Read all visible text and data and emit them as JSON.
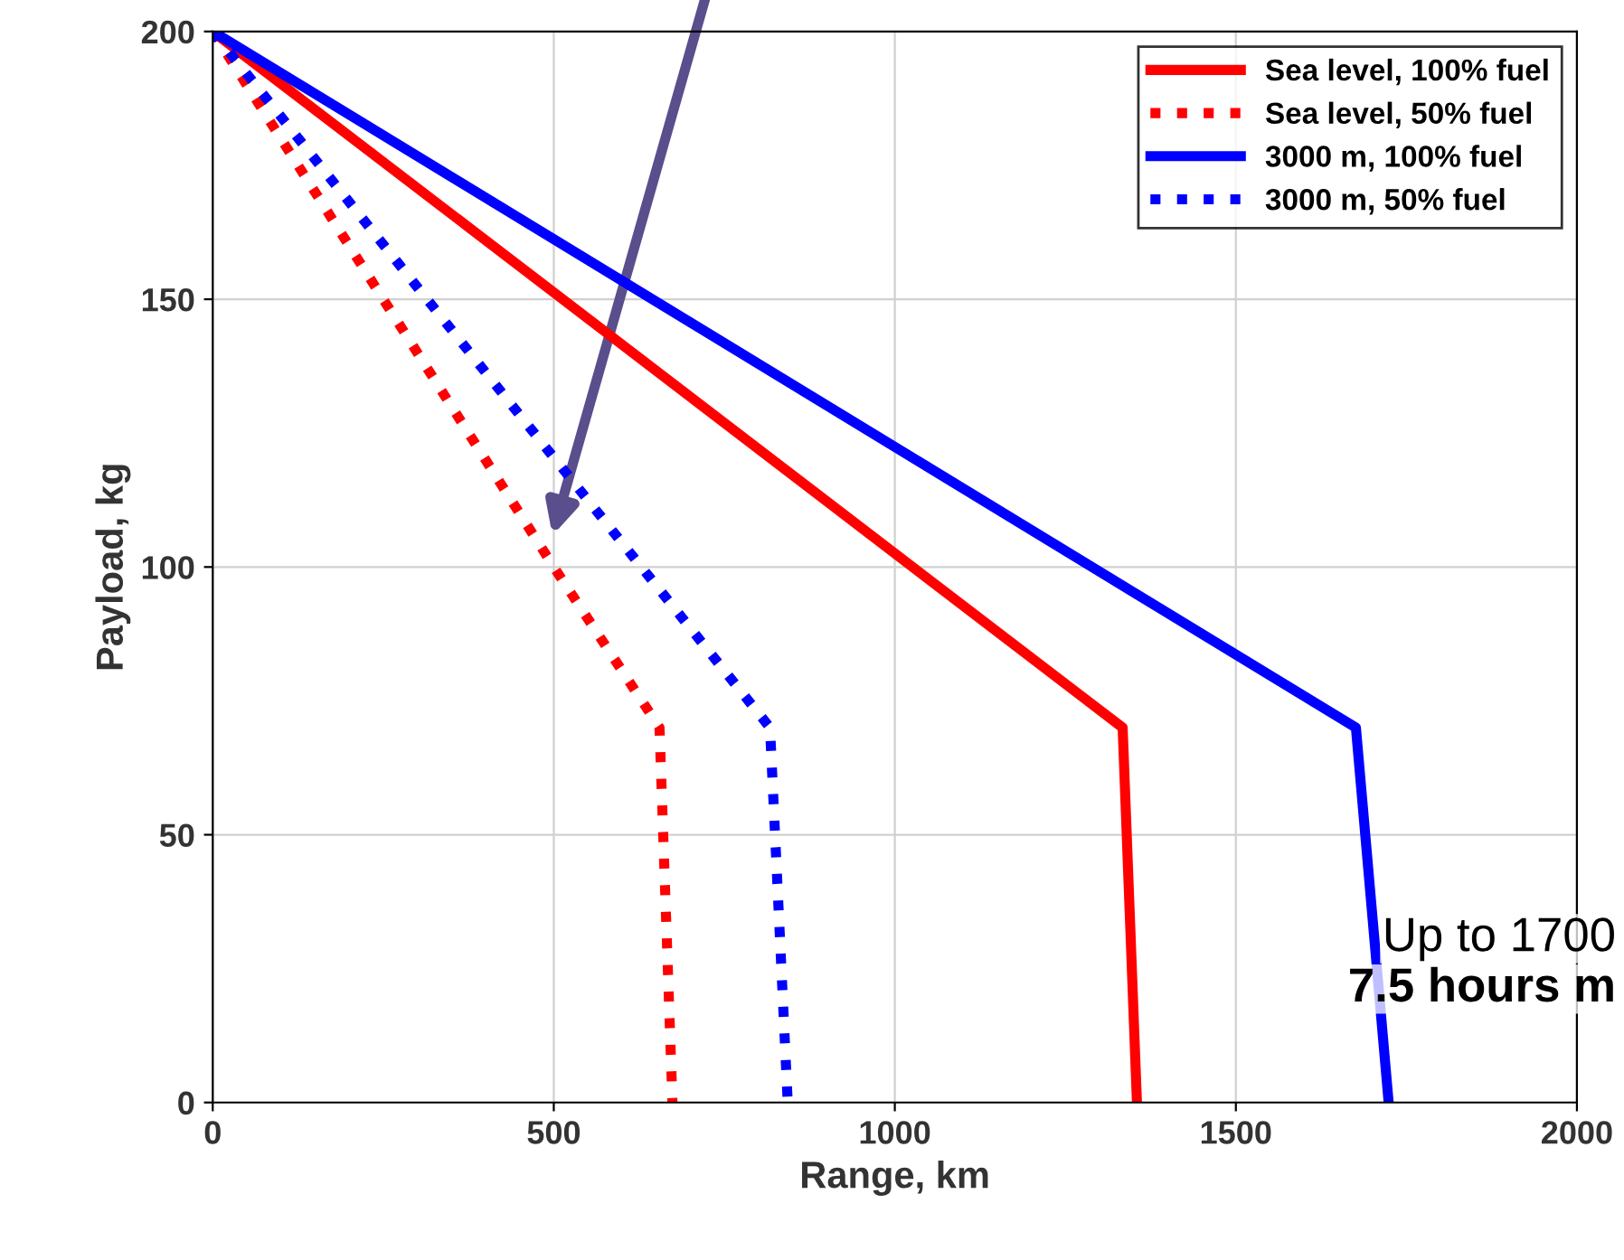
{
  "chart_data": {
    "type": "line",
    "xlabel": "Range, km",
    "ylabel": "Payload, kg",
    "xlim": [
      0,
      2000
    ],
    "ylim": [
      0,
      200
    ],
    "xticks": [
      0,
      500,
      1000,
      1500,
      2000
    ],
    "yticks": [
      0,
      50,
      100,
      150,
      200
    ],
    "grid": true,
    "legend": "top right",
    "marker": "none",
    "series": [
      {
        "name": "Sea level, 100% fuel",
        "color": "#ff0000",
        "line_style": "solid",
        "x": [
          0,
          1334,
          1355
        ],
        "values": [
          200,
          70,
          0
        ]
      },
      {
        "name": "Sea level, 50% fuel",
        "color": "#ff0000",
        "line_style": "dotted",
        "x": [
          0,
          500,
          655,
          674
        ],
        "values": [
          200,
          100,
          70,
          0
        ]
      },
      {
        "name": "3000 m, 100% fuel",
        "color": "#0000ff",
        "line_style": "solid",
        "x": [
          0,
          1676,
          1724
        ],
        "values": [
          200,
          70,
          0
        ]
      },
      {
        "name": "3000 m, 50% fuel",
        "color": "#0000ff",
        "line_style": "dotted",
        "x": [
          0,
          817,
          843
        ],
        "values": [
          200,
          70,
          0
        ]
      }
    ],
    "annotations": [
      "Up to 1700",
      "7.5 hours m"
    ]
  }
}
